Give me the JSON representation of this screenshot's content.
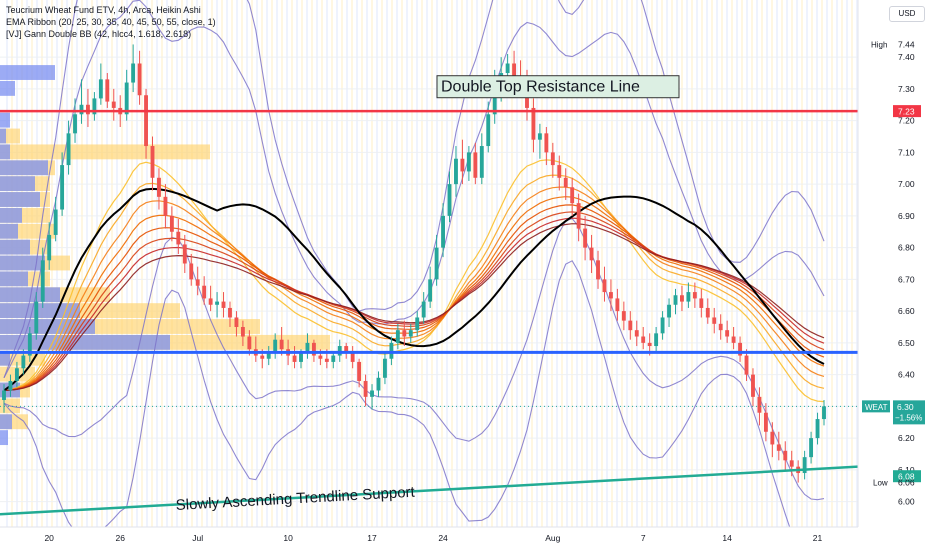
{
  "legend": {
    "symbol_line": "Teucrium Wheat Fund ETV, 4h, Arca, Heikin Ashi",
    "indicator_1": "EMA Ribbon (20, 25, 30, 35, 40, 45, 50, 55, close, 1)",
    "indicator_2": "[VJ] Gann Double BB (42, hlcc4, 1.618, 2.618)"
  },
  "currency": "USD",
  "annotations": {
    "resistance_label": "Double Top Resistance Line",
    "support_label": "Slowly Ascending Trendline Support"
  },
  "price_badges": {
    "high_label": "High",
    "high_value": "7.44",
    "resistance_value": "7.23",
    "ticker": "WEAT",
    "last_value": "6.30",
    "change": "−1.56%",
    "trend_value": "6.08",
    "low_label": "Low",
    "low_value": "6.06"
  },
  "colors": {
    "up_candle": "#26a69a",
    "down_candle": "#ef5350",
    "resistance_line": "#f23645",
    "support_line": "#2962ff",
    "trendline": "#22ab94",
    "bollinger": "#7e74c9",
    "moving_average": "#000000",
    "ribbon": [
      "#fbc02d",
      "#f9a825",
      "#f57f17",
      "#ef6c00",
      "#e65100",
      "#d84315",
      "#c62828",
      "#8d1f1f"
    ]
  },
  "chart_data": {
    "type": "candlestick",
    "ylim": [
      5.92,
      7.58
    ],
    "y_ticks": [
      "6.00",
      "6.10",
      "6.20",
      "6.30",
      "6.40",
      "6.50",
      "6.60",
      "6.70",
      "6.80",
      "6.90",
      "7.00",
      "7.10",
      "7.20",
      "7.30",
      "7.40"
    ],
    "x_ticks": [
      "20",
      "26",
      "Jul",
      "10",
      "17",
      "24",
      "Aug",
      "7",
      "14",
      "21"
    ],
    "resistance_level": 7.23,
    "support_level": 6.47,
    "trendline": [
      [
        0,
        5.96
      ],
      [
        161,
        6.11
      ]
    ],
    "ohlc": [
      [
        6.32,
        6.37,
        6.28,
        6.35
      ],
      [
        6.35,
        6.4,
        6.33,
        6.38
      ],
      [
        6.38,
        6.44,
        6.36,
        6.42
      ],
      [
        6.42,
        6.48,
        6.4,
        6.46
      ],
      [
        6.46,
        6.55,
        6.44,
        6.53
      ],
      [
        6.53,
        6.66,
        6.51,
        6.63
      ],
      [
        6.63,
        6.8,
        6.61,
        6.76
      ],
      [
        6.76,
        6.88,
        6.73,
        6.84
      ],
      [
        6.84,
        6.96,
        6.82,
        6.92
      ],
      [
        6.92,
        7.1,
        6.9,
        7.06
      ],
      [
        7.06,
        7.2,
        7.03,
        7.16
      ],
      [
        7.16,
        7.27,
        7.13,
        7.22
      ],
      [
        7.22,
        7.33,
        7.19,
        7.25
      ],
      [
        7.25,
        7.3,
        7.18,
        7.22
      ],
      [
        7.22,
        7.29,
        7.2,
        7.27
      ],
      [
        7.27,
        7.38,
        7.25,
        7.33
      ],
      [
        7.33,
        7.35,
        7.24,
        7.26
      ],
      [
        7.26,
        7.3,
        7.2,
        7.24
      ],
      [
        7.24,
        7.28,
        7.18,
        7.22
      ],
      [
        7.22,
        7.36,
        7.2,
        7.32
      ],
      [
        7.32,
        7.44,
        7.29,
        7.38
      ],
      [
        7.38,
        7.42,
        7.25,
        7.28
      ],
      [
        7.28,
        7.3,
        7.08,
        7.12
      ],
      [
        7.12,
        7.15,
        6.98,
        7.02
      ],
      [
        7.02,
        7.05,
        6.92,
        6.96
      ],
      [
        6.96,
        7.0,
        6.86,
        6.9
      ],
      [
        6.9,
        6.93,
        6.82,
        6.85
      ],
      [
        6.85,
        6.89,
        6.78,
        6.81
      ],
      [
        6.81,
        6.84,
        6.72,
        6.75
      ],
      [
        6.75,
        6.78,
        6.68,
        6.7
      ],
      [
        6.7,
        6.74,
        6.65,
        6.68
      ],
      [
        6.68,
        6.71,
        6.62,
        6.64
      ],
      [
        6.64,
        6.68,
        6.6,
        6.62
      ],
      [
        6.62,
        6.66,
        6.58,
        6.63
      ],
      [
        6.63,
        6.66,
        6.58,
        6.61
      ],
      [
        6.61,
        6.63,
        6.55,
        6.58
      ],
      [
        6.58,
        6.6,
        6.52,
        6.55
      ],
      [
        6.55,
        6.57,
        6.49,
        6.52
      ],
      [
        6.52,
        6.54,
        6.46,
        6.48
      ],
      [
        6.48,
        6.52,
        6.44,
        6.46
      ],
      [
        6.46,
        6.48,
        6.42,
        6.45
      ],
      [
        6.45,
        6.49,
        6.43,
        6.47
      ],
      [
        6.47,
        6.53,
        6.45,
        6.51
      ],
      [
        6.51,
        6.55,
        6.46,
        6.48
      ],
      [
        6.48,
        6.51,
        6.43,
        6.46
      ],
      [
        6.46,
        6.49,
        6.42,
        6.44
      ],
      [
        6.44,
        6.48,
        6.42,
        6.47
      ],
      [
        6.47,
        6.53,
        6.45,
        6.5
      ],
      [
        6.5,
        6.51,
        6.44,
        6.46
      ],
      [
        6.46,
        6.48,
        6.43,
        6.45
      ],
      [
        6.45,
        6.48,
        6.42,
        6.44
      ],
      [
        6.44,
        6.47,
        6.42,
        6.46
      ],
      [
        6.46,
        6.51,
        6.44,
        6.49
      ],
      [
        6.49,
        6.5,
        6.45,
        6.47
      ],
      [
        6.47,
        6.49,
        6.42,
        6.44
      ],
      [
        6.44,
        6.45,
        6.36,
        6.38
      ],
      [
        6.38,
        6.4,
        6.3,
        6.33
      ],
      [
        6.33,
        6.37,
        6.29,
        6.35
      ],
      [
        6.35,
        6.41,
        6.33,
        6.39
      ],
      [
        6.39,
        6.47,
        6.37,
        6.45
      ],
      [
        6.45,
        6.52,
        6.43,
        6.5
      ],
      [
        6.5,
        6.56,
        6.48,
        6.54
      ],
      [
        6.54,
        6.57,
        6.49,
        6.52
      ],
      [
        6.52,
        6.56,
        6.5,
        6.54
      ],
      [
        6.54,
        6.6,
        6.52,
        6.58
      ],
      [
        6.58,
        6.66,
        6.56,
        6.63
      ],
      [
        6.63,
        6.74,
        6.61,
        6.7
      ],
      [
        6.7,
        6.84,
        6.68,
        6.8
      ],
      [
        6.8,
        6.94,
        6.77,
        6.9
      ],
      [
        6.9,
        7.04,
        6.88,
        7.0
      ],
      [
        7.0,
        7.12,
        6.96,
        7.08
      ],
      [
        7.08,
        7.14,
        7.0,
        7.04
      ],
      [
        7.04,
        7.12,
        7.01,
        7.1
      ],
      [
        7.1,
        7.13,
        7.0,
        7.02
      ],
      [
        7.02,
        7.16,
        7.0,
        7.12
      ],
      [
        7.12,
        7.26,
        7.1,
        7.22
      ],
      [
        7.22,
        7.36,
        7.19,
        7.31
      ],
      [
        7.31,
        7.4,
        7.26,
        7.35
      ],
      [
        7.35,
        7.41,
        7.3,
        7.38
      ],
      [
        7.38,
        7.42,
        7.3,
        7.34
      ],
      [
        7.34,
        7.39,
        7.28,
        7.32
      ],
      [
        7.32,
        7.36,
        7.2,
        7.24
      ],
      [
        7.24,
        7.27,
        7.1,
        7.14
      ],
      [
        7.14,
        7.19,
        7.08,
        7.16
      ],
      [
        7.16,
        7.18,
        7.06,
        7.1
      ],
      [
        7.1,
        7.13,
        7.02,
        7.06
      ],
      [
        7.06,
        7.09,
        6.98,
        7.02
      ],
      [
        7.02,
        7.05,
        6.95,
        6.99
      ],
      [
        6.99,
        7.02,
        6.9,
        6.94
      ],
      [
        6.94,
        6.97,
        6.82,
        6.86
      ],
      [
        6.86,
        6.9,
        6.76,
        6.8
      ],
      [
        6.8,
        6.84,
        6.72,
        6.76
      ],
      [
        6.76,
        6.79,
        6.67,
        6.7
      ],
      [
        6.7,
        6.74,
        6.63,
        6.66
      ],
      [
        6.66,
        6.7,
        6.6,
        6.64
      ],
      [
        6.64,
        6.67,
        6.57,
        6.6
      ],
      [
        6.6,
        6.63,
        6.54,
        6.57
      ],
      [
        6.57,
        6.6,
        6.51,
        6.54
      ],
      [
        6.54,
        6.57,
        6.49,
        6.52
      ],
      [
        6.52,
        6.55,
        6.48,
        6.5
      ],
      [
        6.5,
        6.53,
        6.46,
        6.49
      ],
      [
        6.49,
        6.55,
        6.47,
        6.53
      ],
      [
        6.53,
        6.6,
        6.51,
        6.58
      ],
      [
        6.58,
        6.64,
        6.55,
        6.62
      ],
      [
        6.62,
        6.67,
        6.59,
        6.65
      ],
      [
        6.65,
        6.68,
        6.6,
        6.63
      ],
      [
        6.63,
        6.69,
        6.61,
        6.66
      ],
      [
        6.66,
        6.69,
        6.61,
        6.64
      ],
      [
        6.64,
        6.67,
        6.58,
        6.61
      ],
      [
        6.61,
        6.64,
        6.56,
        6.58
      ],
      [
        6.58,
        6.61,
        6.53,
        6.56
      ],
      [
        6.56,
        6.59,
        6.51,
        6.54
      ],
      [
        6.54,
        6.57,
        6.5,
        6.52
      ],
      [
        6.52,
        6.55,
        6.48,
        6.5
      ],
      [
        6.5,
        6.52,
        6.44,
        6.46
      ],
      [
        6.46,
        6.48,
        6.38,
        6.4
      ],
      [
        6.4,
        6.42,
        6.3,
        6.33
      ],
      [
        6.33,
        6.36,
        6.24,
        6.28
      ],
      [
        6.28,
        6.31,
        6.19,
        6.22
      ],
      [
        6.22,
        6.25,
        6.14,
        6.18
      ],
      [
        6.18,
        6.22,
        6.13,
        6.16
      ],
      [
        6.16,
        6.19,
        6.1,
        6.13
      ],
      [
        6.13,
        6.16,
        6.08,
        6.11
      ],
      [
        6.11,
        6.13,
        6.06,
        6.09
      ],
      [
        6.09,
        6.16,
        6.07,
        6.14
      ],
      [
        6.14,
        6.22,
        6.12,
        6.2
      ],
      [
        6.2,
        6.28,
        6.18,
        6.26
      ],
      [
        6.26,
        6.32,
        6.24,
        6.3
      ]
    ]
  }
}
